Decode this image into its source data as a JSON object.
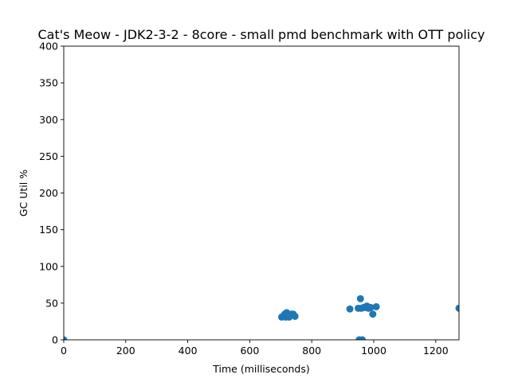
{
  "chart_data": {
    "type": "scatter",
    "title": "Cat's Meow - JDK2-3-2 - 8core -  small pmd benchmark with OTT policy",
    "xlabel": "Time (milliseconds)",
    "ylabel": "GC Util %",
    "xlim": [
      0,
      1275
    ],
    "ylim": [
      0,
      400
    ],
    "xticks": [
      0,
      200,
      400,
      600,
      800,
      1000,
      1200
    ],
    "yticks": [
      0,
      50,
      100,
      150,
      200,
      250,
      300,
      350,
      400
    ],
    "grid": false,
    "color": "#1f77b4",
    "points": [
      {
        "x": 0,
        "y": 0
      },
      {
        "x": 703,
        "y": 31
      },
      {
        "x": 708,
        "y": 32
      },
      {
        "x": 713,
        "y": 35
      },
      {
        "x": 716,
        "y": 31
      },
      {
        "x": 719,
        "y": 37
      },
      {
        "x": 723,
        "y": 34
      },
      {
        "x": 727,
        "y": 31
      },
      {
        "x": 731,
        "y": 33
      },
      {
        "x": 735,
        "y": 35
      },
      {
        "x": 740,
        "y": 35
      },
      {
        "x": 746,
        "y": 32
      },
      {
        "x": 923,
        "y": 42
      },
      {
        "x": 950,
        "y": 43
      },
      {
        "x": 953,
        "y": 0
      },
      {
        "x": 957,
        "y": 56
      },
      {
        "x": 960,
        "y": 43
      },
      {
        "x": 963,
        "y": 0
      },
      {
        "x": 967,
        "y": 44
      },
      {
        "x": 973,
        "y": 44
      },
      {
        "x": 978,
        "y": 46
      },
      {
        "x": 983,
        "y": 43
      },
      {
        "x": 990,
        "y": 44
      },
      {
        "x": 997,
        "y": 35
      },
      {
        "x": 1008,
        "y": 45
      },
      {
        "x": 1275,
        "y": 43
      }
    ]
  }
}
